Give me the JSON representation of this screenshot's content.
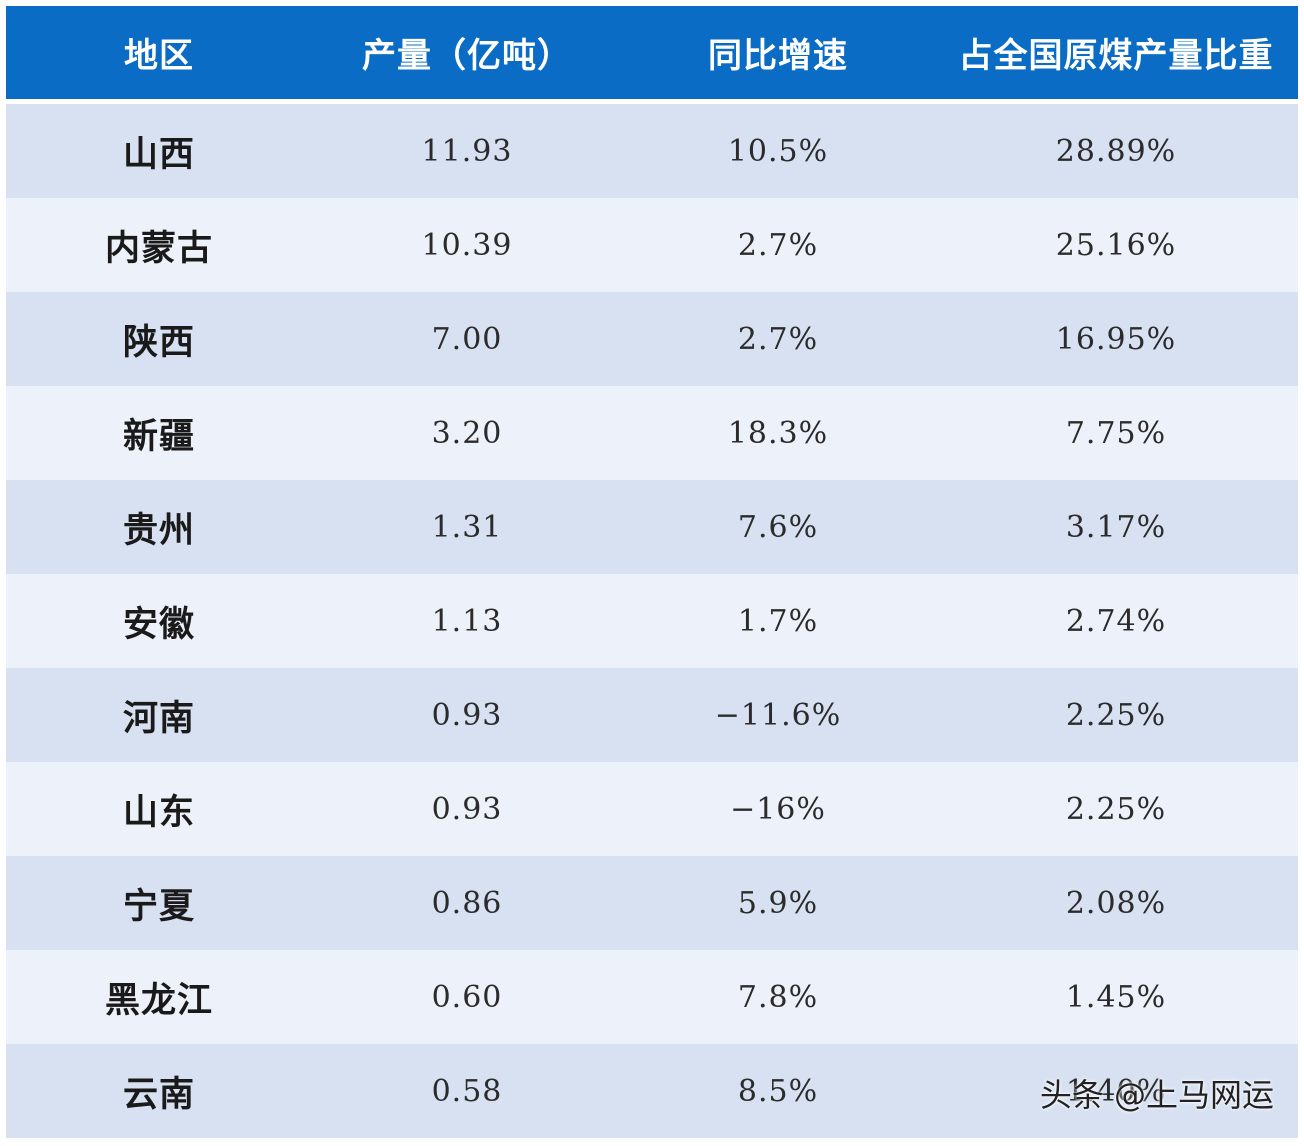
{
  "table": {
    "header_bg": "#0a6cc4",
    "row_odd_bg": "#d7e1f2",
    "row_even_bg": "#edf1f9",
    "headers": [
      "地区",
      "产量（亿吨）",
      "同比增速",
      "占全国原煤产量比重"
    ],
    "rows": [
      [
        "山西",
        "11.93",
        "10.5%",
        "28.89%"
      ],
      [
        "内蒙古",
        "10.39",
        "2.7%",
        "25.16%"
      ],
      [
        "陕西",
        "7.00",
        "2.7%",
        "16.95%"
      ],
      [
        "新疆",
        "3.20",
        "18.3%",
        "7.75%"
      ],
      [
        "贵州",
        "1.31",
        "7.6%",
        "3.17%"
      ],
      [
        "安徽",
        "1.13",
        "1.7%",
        "2.74%"
      ],
      [
        "河南",
        "0.93",
        "−11.6%",
        "2.25%"
      ],
      [
        "山东",
        "0.93",
        "−16%",
        "2.25%"
      ],
      [
        "宁夏",
        "0.86",
        "5.9%",
        "2.08%"
      ],
      [
        "黑龙江",
        "0.60",
        "7.8%",
        "1.45%"
      ],
      [
        "云南",
        "0.58",
        "8.5%",
        "1.40%"
      ]
    ]
  },
  "watermark": "头条 @上马网运"
}
